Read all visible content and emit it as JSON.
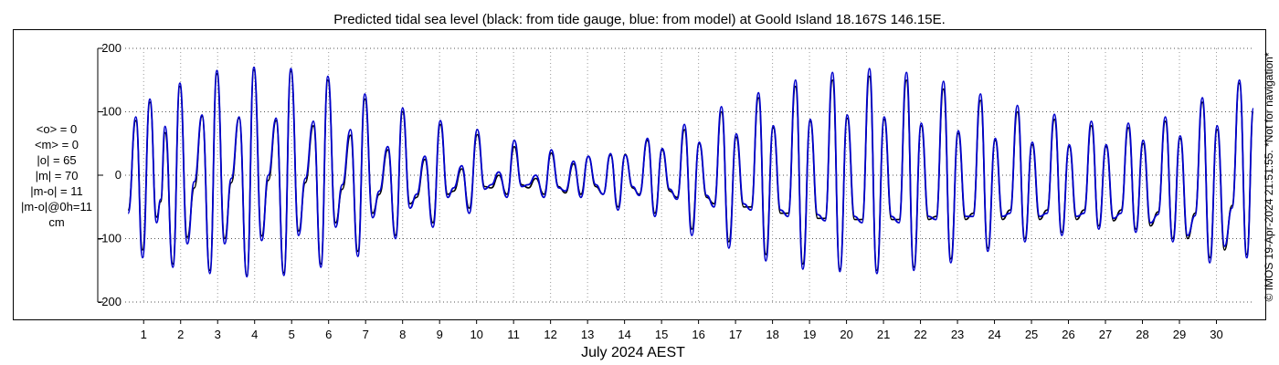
{
  "chart_data": {
    "type": "line",
    "title": "Predicted tidal sea level (black: from tide gauge, blue: from model) at Goold Island 18.167S 146.15E.",
    "xlabel": "July 2024 AEST",
    "ylabel": "",
    "xlim": [
      0.5,
      31.0
    ],
    "ylim": [
      -200,
      200
    ],
    "yticks": [
      200,
      100,
      0,
      -100,
      -200
    ],
    "xticks": [
      1,
      2,
      3,
      4,
      5,
      6,
      7,
      8,
      9,
      10,
      11,
      12,
      13,
      14,
      15,
      16,
      17,
      18,
      19,
      20,
      21,
      22,
      23,
      24,
      25,
      26,
      27,
      28,
      29,
      30
    ],
    "xtick_labels": [
      "1",
      "2",
      "3",
      "4",
      "5",
      "6",
      "7",
      "8",
      "9",
      "10",
      "11",
      "12",
      "13",
      "14",
      "15",
      "16",
      "17",
      "18",
      "19",
      "20",
      "21",
      "22",
      "23",
      "24",
      "25",
      "26",
      "27",
      "28",
      "29",
      "30"
    ],
    "grid": true,
    "series_colors": [
      "#000000",
      "#0000cc"
    ],
    "extrema_notes": "x = day of July 2024, y = sea level in cm",
    "series": [
      {
        "color": "#000000",
        "points": [
          [
            0.58,
            -55
          ],
          [
            0.79,
            86
          ],
          [
            0.97,
            -118
          ],
          [
            1.17,
            115
          ],
          [
            1.35,
            -66
          ],
          [
            1.46,
            -42
          ],
          [
            1.58,
            67
          ],
          [
            1.79,
            -140
          ],
          [
            1.98,
            140
          ],
          [
            2.18,
            -98
          ],
          [
            2.37,
            -20
          ],
          [
            2.58,
            93
          ],
          [
            2.79,
            -150
          ],
          [
            2.98,
            160
          ],
          [
            3.19,
            -100
          ],
          [
            3.37,
            -12
          ],
          [
            3.58,
            90
          ],
          [
            3.79,
            -158
          ],
          [
            3.98,
            166
          ],
          [
            4.19,
            -96
          ],
          [
            4.37,
            -8
          ],
          [
            4.58,
            86
          ],
          [
            4.79,
            -154
          ],
          [
            4.98,
            164
          ],
          [
            5.19,
            -88
          ],
          [
            5.37,
            -12
          ],
          [
            5.59,
            78
          ],
          [
            5.79,
            -140
          ],
          [
            5.98,
            150
          ],
          [
            6.19,
            -75
          ],
          [
            6.37,
            -22
          ],
          [
            6.59,
            63
          ],
          [
            6.79,
            -120
          ],
          [
            6.98,
            120
          ],
          [
            7.19,
            -60
          ],
          [
            7.37,
            -30
          ],
          [
            7.6,
            40
          ],
          [
            7.81,
            -95
          ],
          [
            8.0,
            100
          ],
          [
            8.2,
            -45
          ],
          [
            8.38,
            -35
          ],
          [
            8.6,
            25
          ],
          [
            8.82,
            -75
          ],
          [
            9.02,
            80
          ],
          [
            9.22,
            -30
          ],
          [
            9.38,
            -25
          ],
          [
            9.6,
            10
          ],
          [
            9.8,
            -52
          ],
          [
            10.02,
            64
          ],
          [
            10.22,
            -18
          ],
          [
            10.4,
            -20
          ],
          [
            10.6,
            0
          ],
          [
            10.82,
            -30
          ],
          [
            11.02,
            45
          ],
          [
            11.22,
            -15
          ],
          [
            11.4,
            -20
          ],
          [
            11.6,
            -5
          ],
          [
            11.82,
            -30
          ],
          [
            12.02,
            35
          ],
          [
            12.22,
            -18
          ],
          [
            12.4,
            -28
          ],
          [
            12.62,
            18
          ],
          [
            12.82,
            -30
          ],
          [
            13.02,
            30
          ],
          [
            13.22,
            -18
          ],
          [
            13.42,
            -30
          ],
          [
            13.62,
            32
          ],
          [
            13.82,
            -50
          ],
          [
            14.02,
            33
          ],
          [
            14.22,
            -20
          ],
          [
            14.4,
            -30
          ],
          [
            14.62,
            55
          ],
          [
            14.82,
            -60
          ],
          [
            15.02,
            40
          ],
          [
            15.22,
            -25
          ],
          [
            15.42,
            -35
          ],
          [
            15.62,
            72
          ],
          [
            15.82,
            -85
          ],
          [
            16.02,
            50
          ],
          [
            16.22,
            -35
          ],
          [
            16.42,
            -45
          ],
          [
            16.62,
            100
          ],
          [
            16.82,
            -105
          ],
          [
            17.02,
            60
          ],
          [
            17.22,
            -50
          ],
          [
            17.42,
            -50
          ],
          [
            17.62,
            122
          ],
          [
            17.82,
            -125
          ],
          [
            18.02,
            75
          ],
          [
            18.22,
            -60
          ],
          [
            18.42,
            -60
          ],
          [
            18.62,
            140
          ],
          [
            18.82,
            -140
          ],
          [
            19.02,
            85
          ],
          [
            19.22,
            -68
          ],
          [
            19.42,
            -68
          ],
          [
            19.62,
            150
          ],
          [
            19.82,
            -148
          ],
          [
            20.02,
            90
          ],
          [
            20.22,
            -70
          ],
          [
            20.42,
            -70
          ],
          [
            20.62,
            156
          ],
          [
            20.82,
            -150
          ],
          [
            21.02,
            88
          ],
          [
            21.22,
            -70
          ],
          [
            21.42,
            -70
          ],
          [
            21.62,
            150
          ],
          [
            21.82,
            -145
          ],
          [
            22.02,
            78
          ],
          [
            22.22,
            -70
          ],
          [
            22.42,
            -65
          ],
          [
            22.62,
            136
          ],
          [
            22.82,
            -132
          ],
          [
            23.02,
            66
          ],
          [
            23.22,
            -70
          ],
          [
            23.42,
            -60
          ],
          [
            23.62,
            118
          ],
          [
            23.82,
            -115
          ],
          [
            24.02,
            55
          ],
          [
            24.22,
            -70
          ],
          [
            24.42,
            -55
          ],
          [
            24.62,
            100
          ],
          [
            24.82,
            -100
          ],
          [
            25.02,
            48
          ],
          [
            25.22,
            -70
          ],
          [
            25.42,
            -55
          ],
          [
            25.62,
            88
          ],
          [
            25.82,
            -90
          ],
          [
            26.02,
            45
          ],
          [
            26.22,
            -70
          ],
          [
            26.42,
            -55
          ],
          [
            26.62,
            78
          ],
          [
            26.82,
            -80
          ],
          [
            27.02,
            45
          ],
          [
            27.22,
            -72
          ],
          [
            27.42,
            -55
          ],
          [
            27.62,
            75
          ],
          [
            27.82,
            -85
          ],
          [
            28.02,
            50
          ],
          [
            28.22,
            -80
          ],
          [
            28.42,
            -58
          ],
          [
            28.62,
            85
          ],
          [
            28.82,
            -100
          ],
          [
            29.02,
            58
          ],
          [
            29.22,
            -100
          ],
          [
            29.42,
            -60
          ],
          [
            29.62,
            115
          ],
          [
            29.82,
            -130
          ],
          [
            30.02,
            72
          ],
          [
            30.22,
            -118
          ],
          [
            30.42,
            -48
          ],
          [
            30.62,
            145
          ],
          [
            30.82,
            -125
          ],
          [
            31.0,
            100
          ]
        ]
      },
      {
        "color": "#0000cc",
        "points": [
          [
            0.58,
            -60
          ],
          [
            0.79,
            92
          ],
          [
            0.97,
            -130
          ],
          [
            1.17,
            120
          ],
          [
            1.35,
            -75
          ],
          [
            1.46,
            -38
          ],
          [
            1.58,
            77
          ],
          [
            1.79,
            -145
          ],
          [
            1.98,
            145
          ],
          [
            2.18,
            -108
          ],
          [
            2.37,
            -10
          ],
          [
            2.58,
            95
          ],
          [
            2.79,
            -155
          ],
          [
            2.98,
            165
          ],
          [
            3.19,
            -108
          ],
          [
            3.37,
            -5
          ],
          [
            3.58,
            92
          ],
          [
            3.79,
            -160
          ],
          [
            3.98,
            170
          ],
          [
            4.19,
            -103
          ],
          [
            4.37,
            0
          ],
          [
            4.58,
            90
          ],
          [
            4.79,
            -158
          ],
          [
            4.98,
            168
          ],
          [
            5.19,
            -95
          ],
          [
            5.37,
            -5
          ],
          [
            5.59,
            85
          ],
          [
            5.79,
            -145
          ],
          [
            5.98,
            156
          ],
          [
            6.19,
            -82
          ],
          [
            6.37,
            -15
          ],
          [
            6.59,
            72
          ],
          [
            6.79,
            -128
          ],
          [
            6.98,
            128
          ],
          [
            7.19,
            -67
          ],
          [
            7.37,
            -25
          ],
          [
            7.6,
            45
          ],
          [
            7.81,
            -100
          ],
          [
            8.0,
            106
          ],
          [
            8.2,
            -52
          ],
          [
            8.38,
            -30
          ],
          [
            8.6,
            30
          ],
          [
            8.82,
            -82
          ],
          [
            9.02,
            86
          ],
          [
            9.22,
            -35
          ],
          [
            9.38,
            -20
          ],
          [
            9.6,
            15
          ],
          [
            9.8,
            -60
          ],
          [
            10.02,
            72
          ],
          [
            10.22,
            -22
          ],
          [
            10.4,
            -15
          ],
          [
            10.6,
            5
          ],
          [
            10.82,
            -35
          ],
          [
            11.02,
            55
          ],
          [
            11.22,
            -18
          ],
          [
            11.4,
            -15
          ],
          [
            11.6,
            0
          ],
          [
            11.82,
            -35
          ],
          [
            12.02,
            40
          ],
          [
            12.22,
            -20
          ],
          [
            12.4,
            -25
          ],
          [
            12.62,
            22
          ],
          [
            12.82,
            -35
          ],
          [
            13.02,
            30
          ],
          [
            13.22,
            -15
          ],
          [
            13.42,
            -30
          ],
          [
            13.62,
            34
          ],
          [
            13.82,
            -55
          ],
          [
            14.02,
            32
          ],
          [
            14.22,
            -18
          ],
          [
            14.4,
            -32
          ],
          [
            14.62,
            58
          ],
          [
            14.82,
            -65
          ],
          [
            15.02,
            42
          ],
          [
            15.22,
            -22
          ],
          [
            15.42,
            -38
          ],
          [
            15.62,
            80
          ],
          [
            15.82,
            -95
          ],
          [
            16.02,
            52
          ],
          [
            16.22,
            -32
          ],
          [
            16.42,
            -50
          ],
          [
            16.62,
            108
          ],
          [
            16.82,
            -115
          ],
          [
            17.02,
            65
          ],
          [
            17.22,
            -45
          ],
          [
            17.42,
            -55
          ],
          [
            17.62,
            130
          ],
          [
            17.82,
            -135
          ],
          [
            18.02,
            78
          ],
          [
            18.22,
            -55
          ],
          [
            18.42,
            -65
          ],
          [
            18.62,
            150
          ],
          [
            18.82,
            -148
          ],
          [
            19.02,
            88
          ],
          [
            19.22,
            -62
          ],
          [
            19.42,
            -72
          ],
          [
            19.62,
            162
          ],
          [
            19.82,
            -152
          ],
          [
            20.02,
            95
          ],
          [
            20.22,
            -65
          ],
          [
            20.42,
            -75
          ],
          [
            20.62,
            168
          ],
          [
            20.82,
            -155
          ],
          [
            21.02,
            92
          ],
          [
            21.22,
            -65
          ],
          [
            21.42,
            -75
          ],
          [
            21.62,
            162
          ],
          [
            21.82,
            -150
          ],
          [
            22.02,
            82
          ],
          [
            22.22,
            -65
          ],
          [
            22.42,
            -70
          ],
          [
            22.62,
            148
          ],
          [
            22.82,
            -138
          ],
          [
            23.02,
            70
          ],
          [
            23.22,
            -65
          ],
          [
            23.42,
            -65
          ],
          [
            23.62,
            128
          ],
          [
            23.82,
            -120
          ],
          [
            24.02,
            58
          ],
          [
            24.22,
            -65
          ],
          [
            24.42,
            -60
          ],
          [
            24.62,
            110
          ],
          [
            24.82,
            -105
          ],
          [
            25.02,
            52
          ],
          [
            25.22,
            -65
          ],
          [
            25.42,
            -60
          ],
          [
            25.62,
            96
          ],
          [
            25.82,
            -95
          ],
          [
            26.02,
            48
          ],
          [
            26.22,
            -65
          ],
          [
            26.42,
            -60
          ],
          [
            26.62,
            85
          ],
          [
            26.82,
            -85
          ],
          [
            27.02,
            48
          ],
          [
            27.22,
            -68
          ],
          [
            27.42,
            -60
          ],
          [
            27.62,
            82
          ],
          [
            27.82,
            -90
          ],
          [
            28.02,
            55
          ],
          [
            28.22,
            -75
          ],
          [
            28.42,
            -62
          ],
          [
            28.62,
            92
          ],
          [
            28.82,
            -105
          ],
          [
            29.02,
            62
          ],
          [
            29.22,
            -95
          ],
          [
            29.42,
            -64
          ],
          [
            29.62,
            122
          ],
          [
            29.82,
            -138
          ],
          [
            30.02,
            78
          ],
          [
            30.22,
            -112
          ],
          [
            30.42,
            -52
          ],
          [
            30.62,
            150
          ],
          [
            30.82,
            -130
          ],
          [
            31.0,
            105
          ]
        ]
      }
    ]
  },
  "stats": {
    "lines": [
      "<o> = 0",
      "<m> = 0",
      "|o| = 65",
      "|m| = 70",
      "|m-o| = 11",
      "|m-o|@0h=11",
      "cm"
    ]
  },
  "credit": "© IMOS 19-Apr-2024 21:51:55. *Not for navigation*"
}
